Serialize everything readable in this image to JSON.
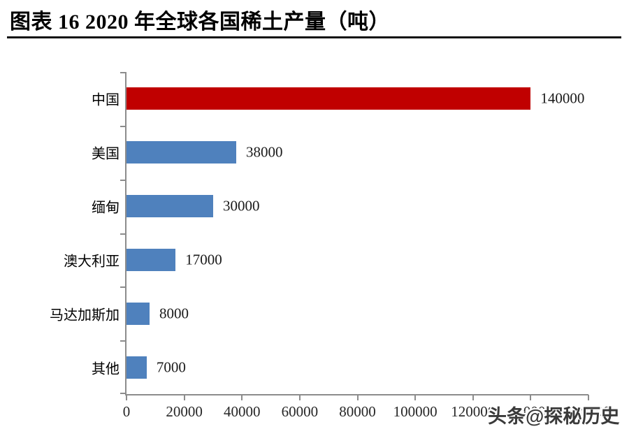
{
  "page": {
    "background": "#ffffff"
  },
  "header": {
    "title": "图表 16 2020 年全球各国稀土产量（吨）"
  },
  "watermark": {
    "text": "头条@探秘历史"
  },
  "chart_data": {
    "type": "bar",
    "orientation": "horizontal",
    "title": "2020 年全球各国稀土产量（吨）",
    "categories": [
      "中国",
      "美国",
      "缅甸",
      "澳大利亚",
      "马达加斯加",
      "其他"
    ],
    "values": [
      140000,
      38000,
      30000,
      17000,
      8000,
      7000
    ],
    "data_labels": [
      "140000",
      "38000",
      "30000",
      "17000",
      "8000",
      "7000"
    ],
    "bar_colors": [
      "#C00000",
      "#4F81BD",
      "#4F81BD",
      "#4F81BD",
      "#4F81BD",
      "#4F81BD"
    ],
    "accent_red": "#C00000",
    "accent_blue": "#4F81BD",
    "axis_color": "#8c8c8c",
    "xlim": [
      0,
      160000
    ],
    "x_ticks": [
      0,
      20000,
      40000,
      60000,
      80000,
      100000,
      120000,
      140000,
      160000
    ],
    "x_tick_labels": [
      "0",
      "20000",
      "40000",
      "60000",
      "80000",
      "100000",
      "120000",
      "140000",
      "160000"
    ],
    "xlabel": "",
    "ylabel": "",
    "grid": false,
    "legend": false
  }
}
